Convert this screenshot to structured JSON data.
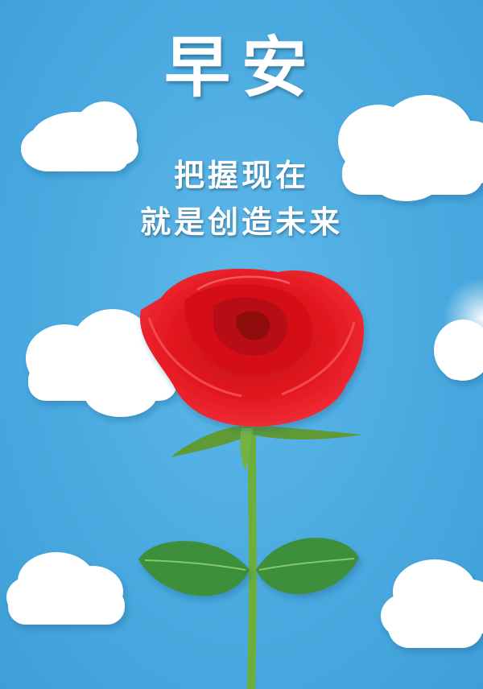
{
  "greeting": {
    "title": "早安",
    "line1": "把握现在",
    "line2": "就是创造未来"
  },
  "colors": {
    "sky": "#4aaae0",
    "cloud": "#ffffff",
    "rose": "#e0141c",
    "stem": "#6fae3a",
    "leaf": "#3d8f3a"
  }
}
